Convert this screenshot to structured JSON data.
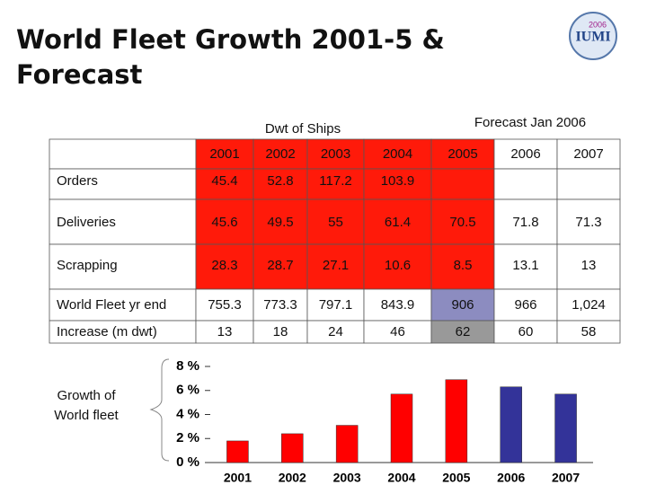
{
  "header": {
    "title_lines": [
      "World Fleet Growth 2001-5  &",
      "Forecast"
    ],
    "logo": {
      "year": "2006",
      "name": "IUMI"
    }
  },
  "table": {
    "caption_left": "Dwt of Ships",
    "caption_right": "Forecast Jan 2006",
    "columns": [
      null,
      "2001",
      "2002",
      "2003",
      "2004",
      "2005",
      "2006",
      "2007"
    ],
    "rows": [
      [
        "Orders",
        45.4,
        52.8,
        117.2,
        103.9,
        null,
        null,
        null
      ],
      [
        "Deliveries",
        45.6,
        49.5,
        55,
        61.4,
        70.5,
        71.8,
        71.3
      ],
      [
        "Scrapping",
        28.3,
        28.7,
        27.1,
        10.6,
        8.5,
        13.1,
        13
      ],
      [
        "World Fleet yr end",
        755.3,
        773.3,
        797.1,
        843.9,
        906,
        966,
        "1,024"
      ],
      [
        "Increase (m dwt)",
        13,
        18,
        24,
        46,
        62,
        60,
        58
      ]
    ]
  },
  "chart_data": {
    "type": "bar",
    "label_lines": [
      "Growth of",
      "World fleet"
    ],
    "categories": [
      "2001",
      "2002",
      "2003",
      "2004",
      "2005",
      "2006",
      "2007"
    ],
    "values": [
      1.8,
      2.4,
      3.1,
      5.7,
      6.9,
      6.3,
      5.7
    ],
    "colors": [
      "#ff0000",
      "#ff0000",
      "#ff0000",
      "#ff0000",
      "#ff0000",
      "#333399",
      "#333399"
    ],
    "ylim": [
      0,
      8
    ],
    "yticks": [
      {
        "value": 0,
        "label": "0 %"
      },
      {
        "value": 2,
        "label": "2 %"
      },
      {
        "value": 4,
        "label": "4 %"
      },
      {
        "value": 6,
        "label": "6 %"
      },
      {
        "value": 8,
        "label": "8 %"
      }
    ]
  }
}
